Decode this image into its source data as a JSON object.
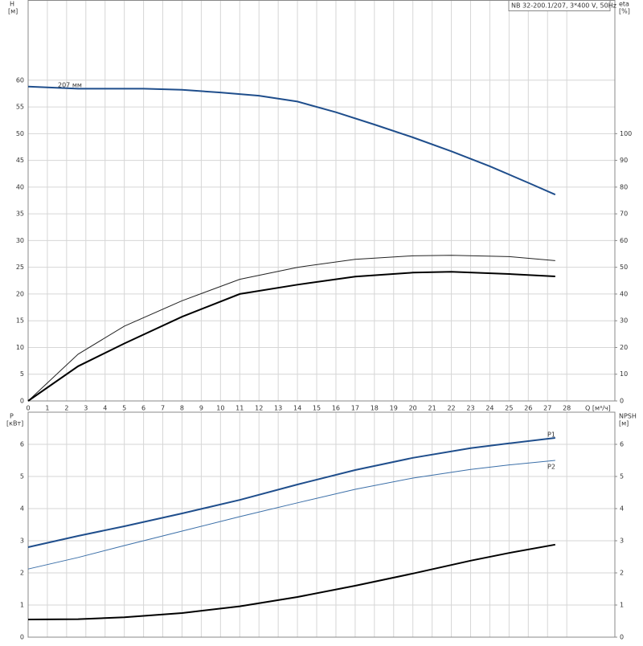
{
  "chart_data": [
    {
      "type": "line",
      "title": "NB 32-200.1/207, 3*400 V, 50Hz",
      "y_label": "H",
      "y_unit": "[м]",
      "y2_label": "eta",
      "y2_unit": "[%]",
      "x_label": "Q [м³/ч]",
      "xlim": [
        0,
        30.5
      ],
      "xticks": [
        0,
        1,
        2,
        3,
        4,
        5,
        6,
        7,
        8,
        9,
        10,
        11,
        12,
        13,
        14,
        15,
        16,
        17,
        18,
        19,
        20,
        21,
        22,
        23,
        24,
        25,
        26,
        27,
        28
      ],
      "ylim": [
        0,
        75
      ],
      "yticks": [
        0,
        5,
        10,
        15,
        20,
        25,
        30,
        35,
        40,
        45,
        50,
        55,
        60
      ],
      "y2lim": [
        0,
        150
      ],
      "y2ticks": [
        0,
        10,
        20,
        30,
        40,
        50,
        60,
        70,
        80,
        90,
        100
      ],
      "grid": true,
      "series": [
        {
          "name": "207 мм",
          "color": "#1f4e8c",
          "width": 2,
          "x": [
            0,
            2.6,
            6,
            8,
            10,
            12,
            14,
            16,
            18,
            20,
            22,
            24,
            26,
            27.4
          ],
          "values": [
            58.8,
            58.4,
            58.4,
            58.2,
            57.7,
            57.1,
            56.0,
            54.0,
            51.7,
            49.3,
            46.7,
            43.9,
            40.8,
            38.6
          ]
        },
        {
          "color": "#222222",
          "width": 1,
          "axis": "y2",
          "x": [
            0,
            2.6,
            5,
            8,
            11,
            14,
            17,
            20,
            22,
            25,
            27.4
          ],
          "values": [
            0,
            17.5,
            28,
            37.5,
            45.5,
            50,
            53,
            54.3,
            54.5,
            54,
            52.5
          ]
        },
        {
          "color": "#000000",
          "width": 2,
          "axis": "y2",
          "x": [
            0,
            2.6,
            5,
            8,
            11,
            14,
            17,
            20,
            22,
            25,
            27.4
          ],
          "values": [
            0,
            13,
            21.5,
            31.5,
            40,
            43.5,
            46.5,
            48,
            48.3,
            47.5,
            46.6
          ]
        }
      ]
    },
    {
      "type": "line",
      "y_label": "P",
      "y_unit": "[кВт]",
      "y2_label": "NPSH",
      "y2_unit": "[м]",
      "xlim": [
        0,
        30.5
      ],
      "xticks": [
        0,
        1,
        2,
        3,
        4,
        5,
        6,
        7,
        8,
        9,
        10,
        11,
        12,
        13,
        14,
        15,
        16,
        17,
        18,
        19,
        20,
        21,
        22,
        23,
        24,
        25,
        26,
        27,
        28
      ],
      "ylim": [
        0,
        7
      ],
      "yticks": [
        0,
        1,
        2,
        3,
        4,
        5,
        6
      ],
      "y2lim": [
        0,
        7
      ],
      "y2ticks": [
        0,
        1,
        2,
        3,
        4,
        5,
        6
      ],
      "grid": true,
      "series": [
        {
          "name": "P1",
          "color": "#1f4e8c",
          "width": 2,
          "x": [
            0,
            2.6,
            5,
            8,
            11,
            14,
            17,
            20,
            23,
            25,
            27.4
          ],
          "values": [
            2.8,
            3.15,
            3.45,
            3.85,
            4.27,
            4.75,
            5.2,
            5.58,
            5.88,
            6.03,
            6.2
          ]
        },
        {
          "name": "P2",
          "color": "#3b6fa8",
          "width": 1,
          "x": [
            0,
            2.6,
            5,
            8,
            11,
            14,
            17,
            20,
            23,
            25,
            27.4
          ],
          "values": [
            2.12,
            2.48,
            2.85,
            3.3,
            3.75,
            4.18,
            4.6,
            4.95,
            5.22,
            5.36,
            5.5
          ]
        },
        {
          "color": "#000000",
          "width": 2,
          "axis": "y2",
          "x": [
            0,
            2.6,
            5,
            8,
            11,
            14,
            17,
            20,
            23,
            25,
            27.4
          ],
          "values": [
            0.55,
            0.56,
            0.62,
            0.75,
            0.96,
            1.25,
            1.6,
            1.98,
            2.38,
            2.62,
            2.88
          ]
        }
      ]
    }
  ]
}
